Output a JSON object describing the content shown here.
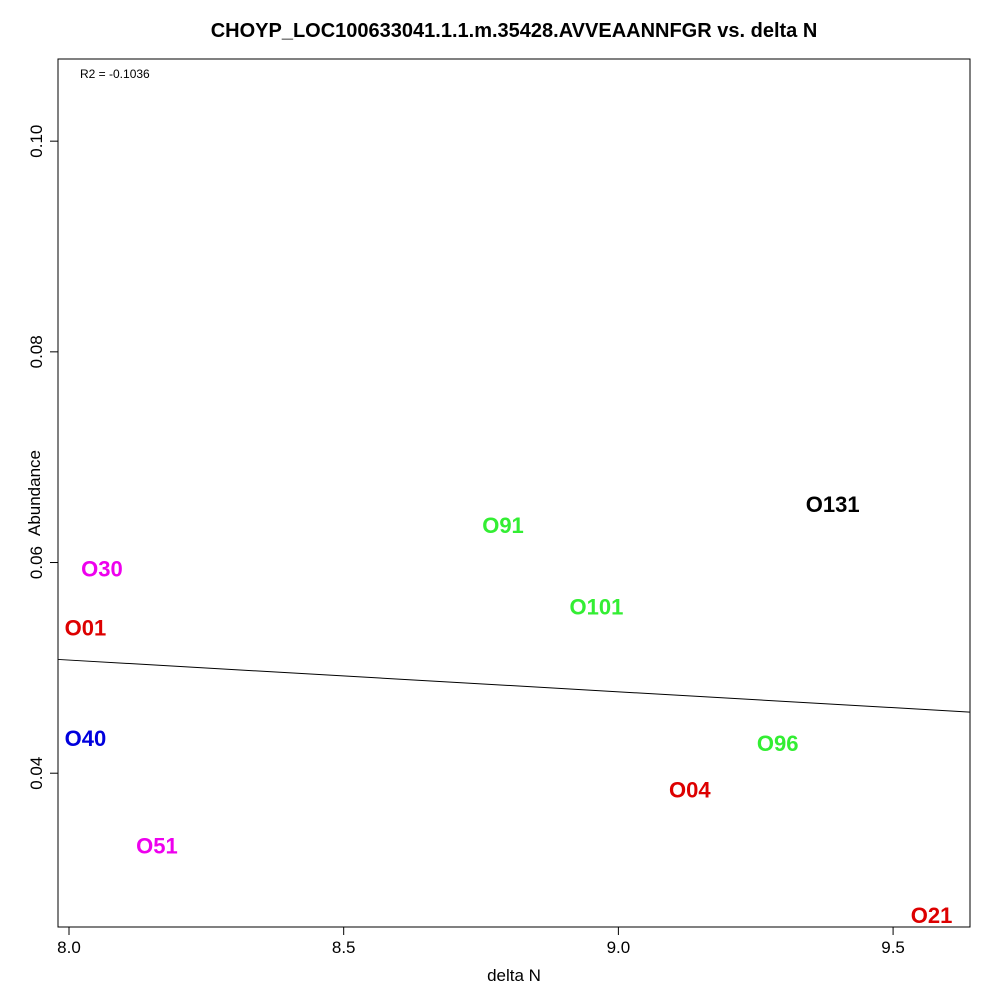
{
  "chart_data": {
    "type": "scatter",
    "title": "CHOYP_LOC100633041.1.1.m.35428.AVVEAANNFGR vs. delta N",
    "xlabel": "delta N",
    "ylabel": "Abundance",
    "annotation": "R2 = -0.1036",
    "xlim": [
      7.98,
      9.64
    ],
    "ylim": [
      0.0254,
      0.1078
    ],
    "xticks": [
      8.0,
      8.5,
      9.0,
      9.5
    ],
    "xtick_labels": [
      "8.0",
      "8.5",
      "9.0",
      "9.5"
    ],
    "yticks": [
      0.04,
      0.06,
      0.08,
      0.1
    ],
    "ytick_labels": [
      "0.04",
      "0.06",
      "0.08",
      "0.10"
    ],
    "grid": false,
    "legend": "none",
    "points": [
      {
        "label": "O30",
        "x": 8.06,
        "y": 0.0594,
        "color": "#ee00ee"
      },
      {
        "label": "O01",
        "x": 8.03,
        "y": 0.0538,
        "color": "#dd0000"
      },
      {
        "label": "O40",
        "x": 8.03,
        "y": 0.0433,
        "color": "#0000dd"
      },
      {
        "label": "O51",
        "x": 8.16,
        "y": 0.0331,
        "color": "#ee00ee"
      },
      {
        "label": "O91",
        "x": 8.79,
        "y": 0.0635,
        "color": "#33ee33"
      },
      {
        "label": "O101",
        "x": 8.96,
        "y": 0.0558,
        "color": "#33ee33"
      },
      {
        "label": "O04",
        "x": 9.13,
        "y": 0.0384,
        "color": "#dd0000"
      },
      {
        "label": "O96",
        "x": 9.29,
        "y": 0.0428,
        "color": "#33ee33"
      },
      {
        "label": "O131",
        "x": 9.39,
        "y": 0.0655,
        "color": "#000000"
      },
      {
        "label": "O21",
        "x": 9.57,
        "y": 0.0265,
        "color": "#dd0000"
      }
    ],
    "fit_line": {
      "x": [
        7.98,
        9.64
      ],
      "y": [
        0.0508,
        0.0458
      ],
      "color": "#000000"
    }
  }
}
